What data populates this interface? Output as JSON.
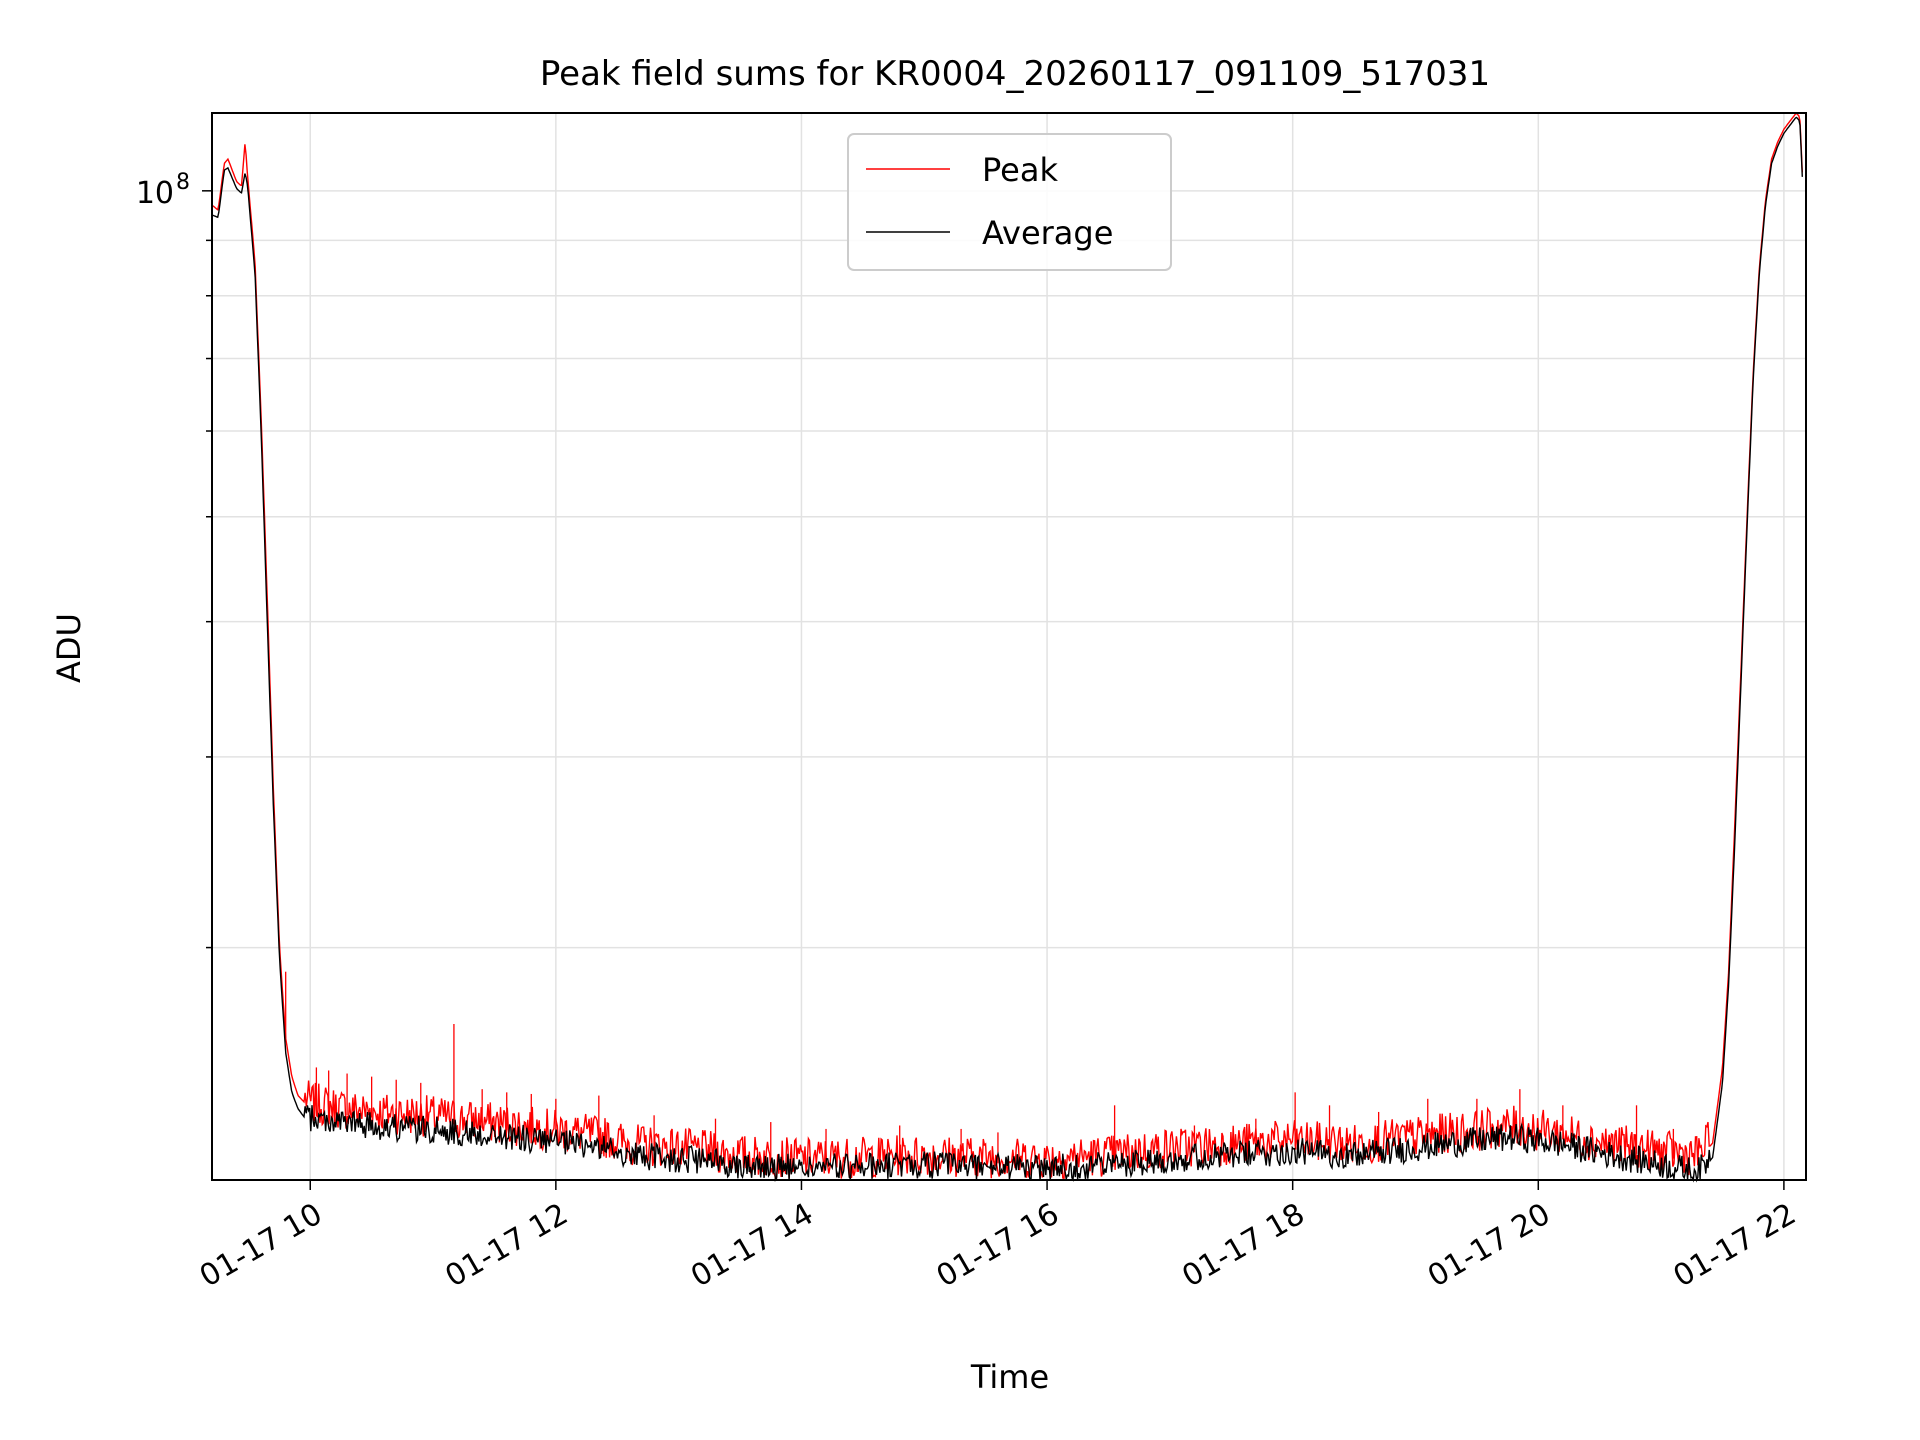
{
  "chart_data": {
    "type": "line",
    "title": "Peak field sums for KR0004_20260117_091109_517031",
    "xlabel": "Time",
    "ylabel": "ADU",
    "yscale": "log",
    "xlim": [
      9.2,
      22.18
    ],
    "ylim": [
      12200000,
      118000000
    ],
    "grid": true,
    "legend_position": "top-center",
    "x_ticks": [
      {
        "value": 10,
        "label": "01-17 10"
      },
      {
        "value": 12,
        "label": "01-17 12"
      },
      {
        "value": 14,
        "label": "01-17 14"
      },
      {
        "value": 16,
        "label": "01-17 16"
      },
      {
        "value": 18,
        "label": "01-17 18"
      },
      {
        "value": 20,
        "label": "01-17 20"
      },
      {
        "value": 22,
        "label": "01-17 22"
      }
    ],
    "y_major_tick": {
      "value": 100000000,
      "base": "10",
      "exponent": "8"
    },
    "y_minor_ticks": [
      20000000,
      30000000,
      40000000,
      50000000,
      60000000,
      70000000,
      80000000,
      90000000
    ],
    "series": [
      {
        "name": "Peak",
        "color": "#ff0000",
        "x": [
          9.2,
          9.25,
          9.3,
          9.33,
          9.4,
          9.44,
          9.47,
          9.49,
          9.55,
          9.6,
          9.65,
          9.7,
          9.75,
          9.8,
          9.85,
          9.9,
          9.95,
          10.0,
          10.3,
          10.6,
          11.0,
          11.5,
          12.0,
          12.4,
          12.6,
          13.0,
          13.5,
          14.0,
          14.5,
          15.0,
          15.5,
          16.0,
          16.5,
          17.0,
          17.5,
          18.0,
          18.5,
          19.0,
          19.5,
          19.8,
          20.2,
          20.6,
          21.0,
          21.3,
          21.42,
          21.5,
          21.55,
          21.6,
          21.65,
          21.7,
          21.75,
          21.8,
          21.85,
          21.9,
          21.95,
          22.0,
          22.05,
          22.1,
          22.13,
          22.15
        ],
        "y": [
          97000000,
          96000000,
          106000000,
          107000000,
          102000000,
          101000000,
          111000000,
          103000000,
          86000000,
          62000000,
          42000000,
          28000000,
          20000000,
          16500000,
          15200000,
          14600000,
          14400000,
          14200000,
          14000000,
          13900000,
          13800000,
          13600000,
          13400000,
          13200000,
          13000000,
          12900000,
          12700000,
          12600000,
          12650000,
          12700000,
          12650000,
          12600000,
          12700000,
          12900000,
          13000000,
          13100000,
          13000000,
          13200000,
          13400000,
          13500000,
          13300000,
          13000000,
          12800000,
          12700000,
          13200000,
          15500000,
          19000000,
          26000000,
          36000000,
          50000000,
          68000000,
          85000000,
          98000000,
          107000000,
          111000000,
          114000000,
          116000000,
          118000000,
          117000000,
          104000000
        ],
        "spikes": [
          {
            "x": 9.8,
            "y": 19000000
          },
          {
            "x": 10.05,
            "y": 15500000
          },
          {
            "x": 10.15,
            "y": 15400000
          },
          {
            "x": 10.3,
            "y": 15300000
          },
          {
            "x": 10.5,
            "y": 15200000
          },
          {
            "x": 10.7,
            "y": 15100000
          },
          {
            "x": 10.9,
            "y": 15000000
          },
          {
            "x": 11.17,
            "y": 17000000
          },
          {
            "x": 11.4,
            "y": 14800000
          },
          {
            "x": 11.6,
            "y": 14700000
          },
          {
            "x": 11.8,
            "y": 14650000
          },
          {
            "x": 12.0,
            "y": 14500000
          },
          {
            "x": 12.35,
            "y": 14600000
          },
          {
            "x": 12.8,
            "y": 14000000
          },
          {
            "x": 13.3,
            "y": 13900000
          },
          {
            "x": 13.75,
            "y": 13800000
          },
          {
            "x": 14.2,
            "y": 13600000
          },
          {
            "x": 14.8,
            "y": 13700000
          },
          {
            "x": 15.3,
            "y": 13600000
          },
          {
            "x": 15.6,
            "y": 13500000
          },
          {
            "x": 16.55,
            "y": 14300000
          },
          {
            "x": 17.2,
            "y": 13700000
          },
          {
            "x": 17.7,
            "y": 13900000
          },
          {
            "x": 18.02,
            "y": 14700000
          },
          {
            "x": 18.3,
            "y": 14300000
          },
          {
            "x": 18.7,
            "y": 14100000
          },
          {
            "x": 19.1,
            "y": 14500000
          },
          {
            "x": 19.5,
            "y": 14500000
          },
          {
            "x": 19.85,
            "y": 14800000
          },
          {
            "x": 20.2,
            "y": 14300000
          },
          {
            "x": 20.8,
            "y": 14300000
          },
          {
            "x": 21.1,
            "y": 13600000
          }
        ]
      },
      {
        "name": "Average",
        "color": "#000000",
        "x": [
          9.2,
          9.25,
          9.3,
          9.33,
          9.4,
          9.44,
          9.47,
          9.49,
          9.55,
          9.6,
          9.65,
          9.7,
          9.75,
          9.8,
          9.85,
          9.9,
          9.95,
          10.0,
          10.3,
          10.6,
          11.0,
          11.5,
          12.0,
          12.4,
          12.6,
          13.0,
          13.5,
          14.0,
          14.5,
          15.0,
          15.5,
          16.0,
          16.5,
          17.0,
          17.5,
          18.0,
          18.5,
          19.0,
          19.5,
          19.8,
          20.2,
          20.6,
          21.0,
          21.3,
          21.42,
          21.5,
          21.55,
          21.6,
          21.65,
          21.7,
          21.75,
          21.8,
          21.85,
          21.9,
          21.95,
          22.0,
          22.05,
          22.1,
          22.13,
          22.15
        ],
        "y": [
          95000000,
          94500000,
          104500000,
          105000000,
          100500000,
          99500000,
          104000000,
          101000000,
          84000000,
          60000000,
          40000000,
          27000000,
          19500000,
          16000000,
          14700000,
          14200000,
          13950000,
          13800000,
          13650000,
          13550000,
          13450000,
          13300000,
          13100000,
          12950000,
          12750000,
          12650000,
          12500000,
          12400000,
          12450000,
          12500000,
          12450000,
          12400000,
          12500000,
          12650000,
          12750000,
          12850000,
          12750000,
          12950000,
          13150000,
          13250000,
          13050000,
          12750000,
          12500000,
          12300000,
          12800000,
          15000000,
          18500000,
          25000000,
          35000000,
          49000000,
          67000000,
          84000000,
          97000000,
          106000000,
          110000000,
          113000000,
          115000000,
          117000000,
          116000000,
          103000000
        ]
      }
    ]
  }
}
